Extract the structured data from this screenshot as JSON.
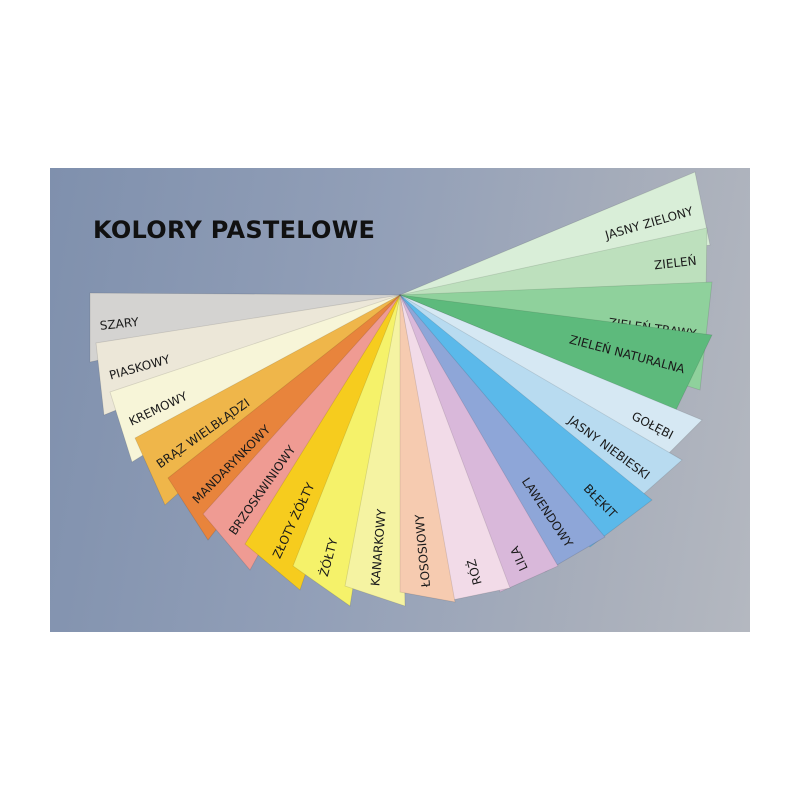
{
  "title": "KOLORY PASTELOWE",
  "swatches": [
    {
      "label": "SZARY",
      "color": "#d4d3d1"
    },
    {
      "label": "PIASKOWY",
      "color": "#ece7d8"
    },
    {
      "label": "KREMOWY",
      "color": "#f7f5d8"
    },
    {
      "label": "BRĄZ WIELBŁĄDZI",
      "color": "#efb64a"
    },
    {
      "label": "MANDARYNKOWY",
      "color": "#e8843c"
    },
    {
      "label": "BRZOSKWINIOWY",
      "color": "#ef9b93"
    },
    {
      "label": "ZŁOTY ŻÓŁTY",
      "color": "#f6cc1e"
    },
    {
      "label": "ŻÓŁTY",
      "color": "#f5f26a"
    },
    {
      "label": "KANARKOWY",
      "color": "#f5f3a2"
    },
    {
      "label": "ŁOSOSIOWY",
      "color": "#f6cbb0"
    },
    {
      "label": "RÓŻ",
      "color": "#f2dbe8"
    },
    {
      "label": "LILA",
      "color": "#d9b8da"
    },
    {
      "label": "LAWENDOWY",
      "color": "#8ea6d8"
    },
    {
      "label": "BŁĘKIT",
      "color": "#5bb9ea"
    },
    {
      "label": "JASNY NIEBIESKI",
      "color": "#b8dbf0"
    },
    {
      "label": "GOŁĘBI",
      "color": "#d6e8f3"
    },
    {
      "label": "ZIELEŃ NATURALNA",
      "color": "#5dba7c"
    },
    {
      "label": "ZIELEŃ TRAWY",
      "color": "#8fd19c"
    },
    {
      "label": "ZIELEŃ",
      "color": "#bde0bd"
    },
    {
      "label": "JASNY ZIELONY",
      "color": "#d9eed8"
    }
  ]
}
